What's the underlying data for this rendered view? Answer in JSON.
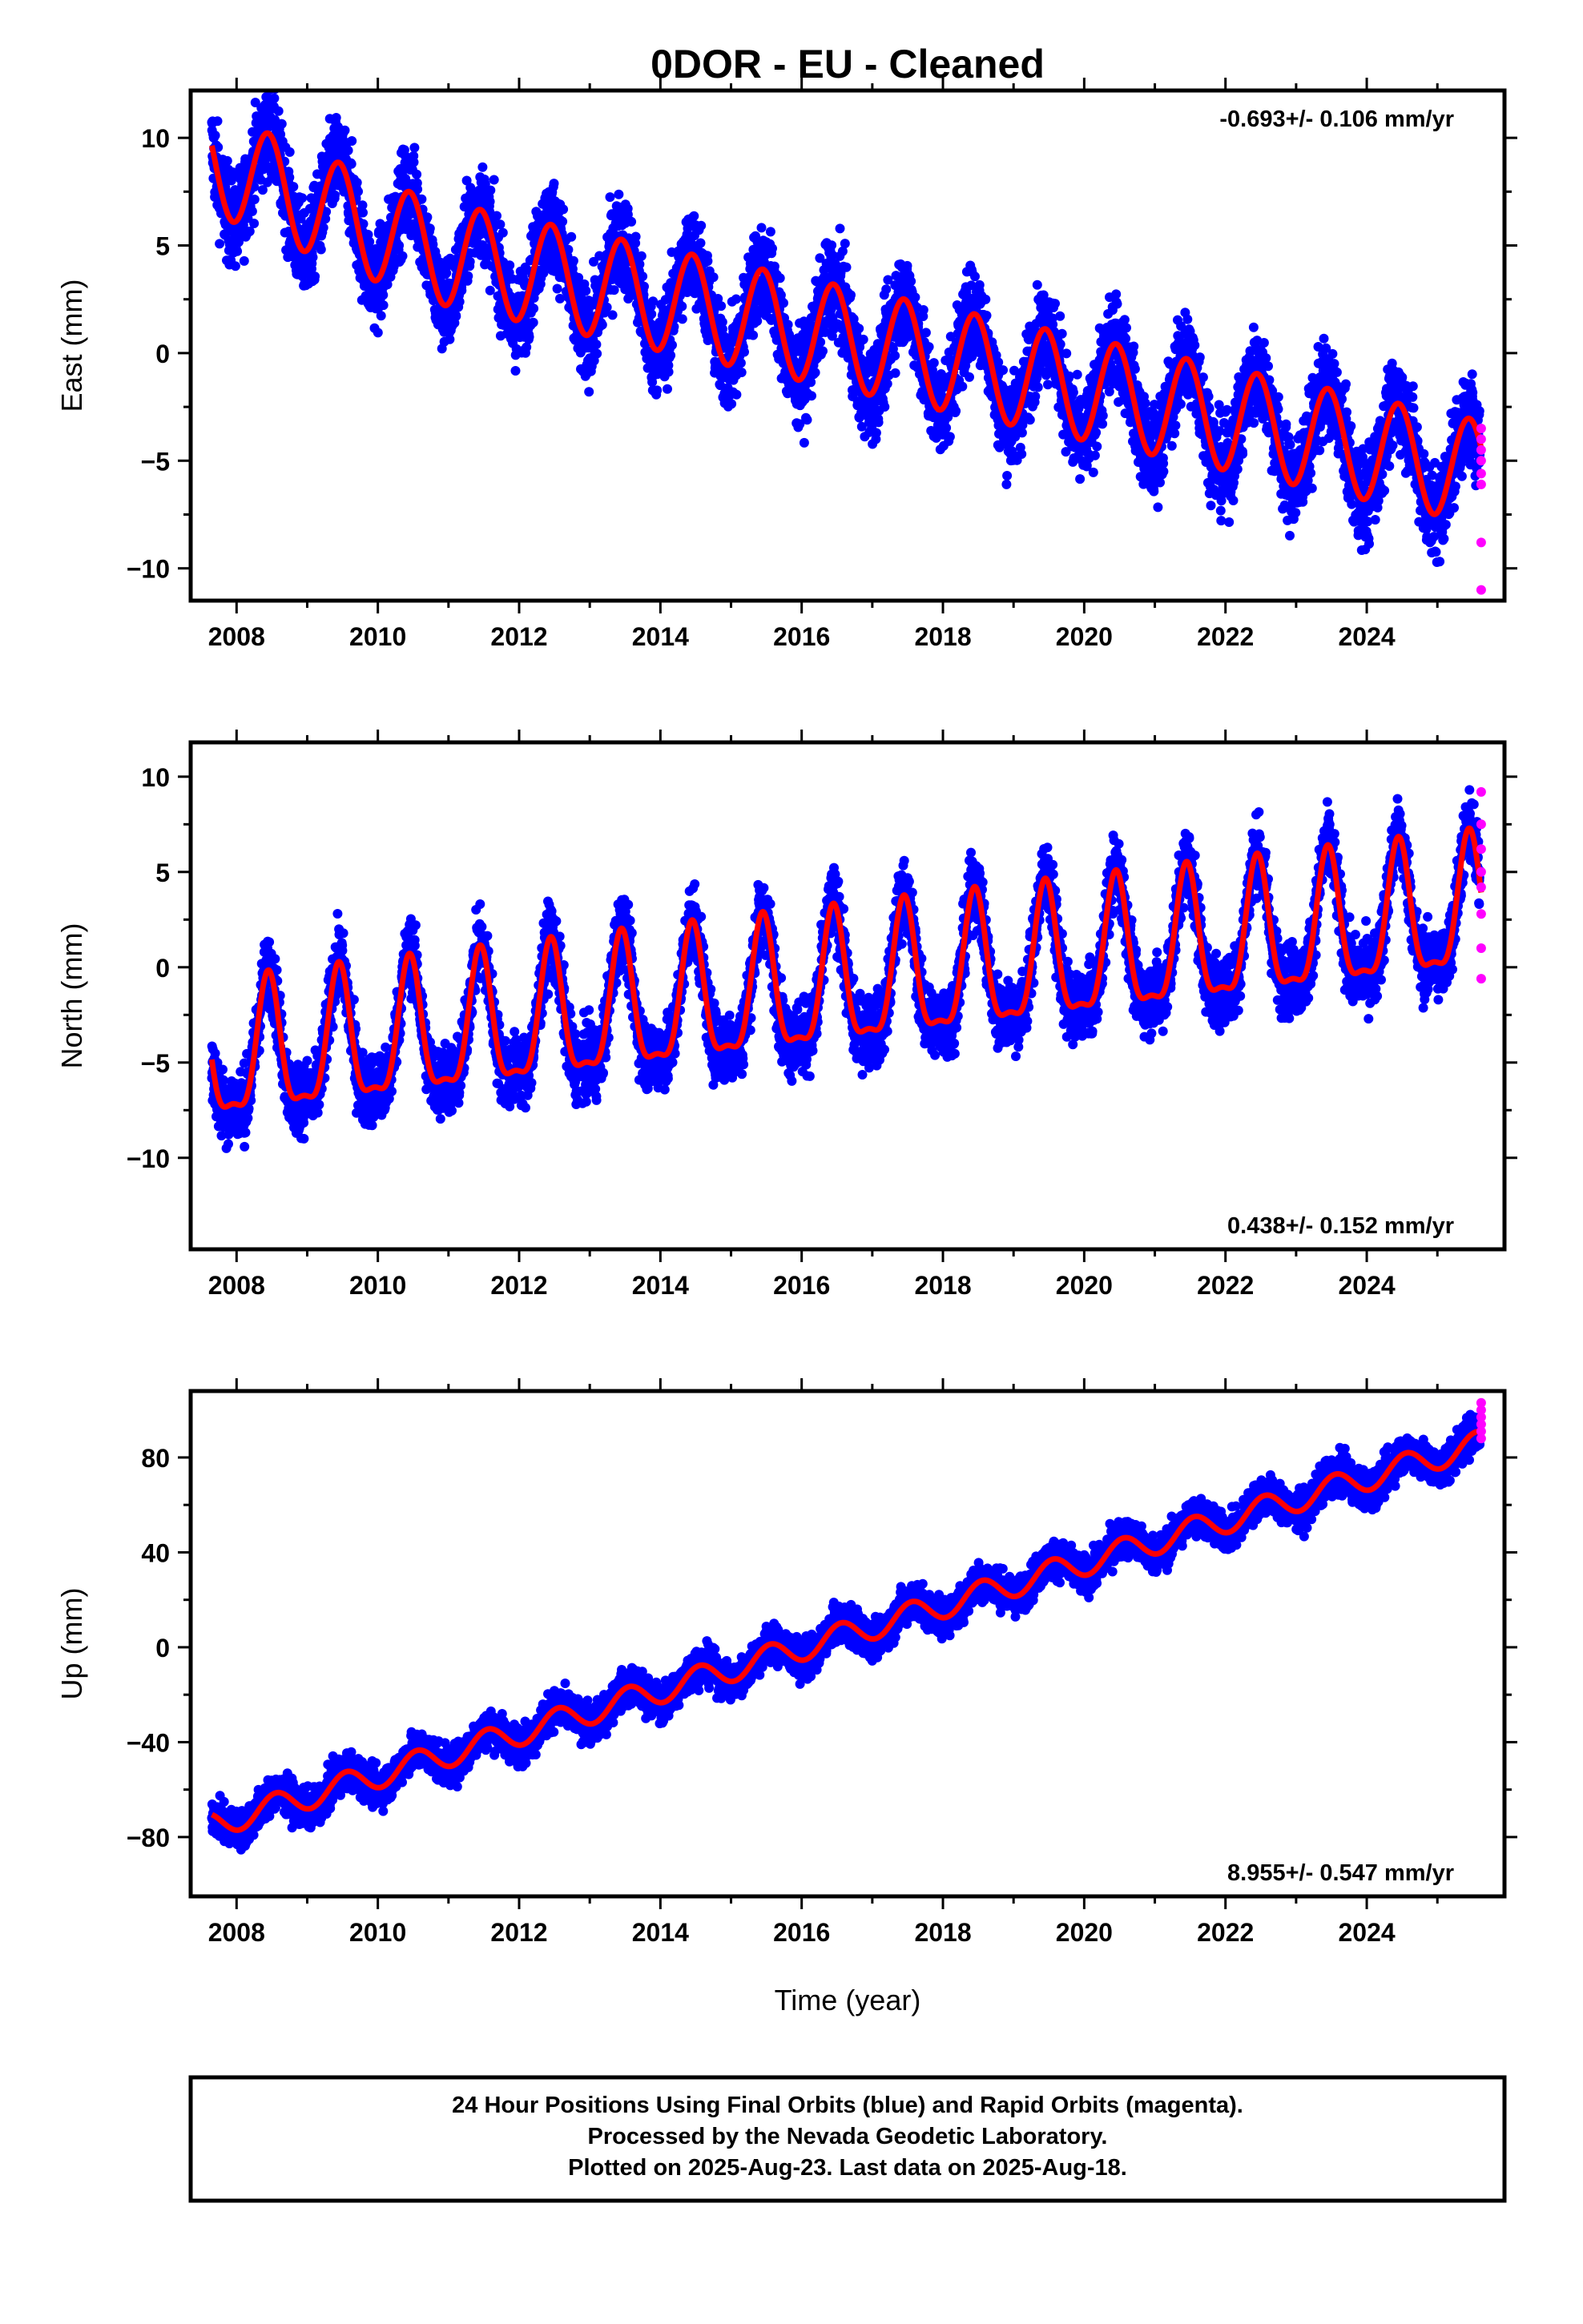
{
  "title": "0DOR  - EU - Cleaned",
  "colors": {
    "final": "#0000ff",
    "rapid": "#ff00ff",
    "model": "#ff0000",
    "frame": "#000000"
  },
  "chart_data": [
    {
      "type": "scatter",
      "ylabel": "East (mm)",
      "xlabel": "",
      "xlim": [
        2007.35,
        2025.95
      ],
      "ylim": [
        -11.5,
        12.2
      ],
      "x_ticks": [
        "2008",
        "2010",
        "2012",
        "2014",
        "2016",
        "2018",
        "2020",
        "2022",
        "2024"
      ],
      "y_ticks": [
        "10",
        "5",
        "0",
        "−5",
        "−10"
      ],
      "y_tick_values": [
        10,
        5,
        0,
        -5,
        -10
      ],
      "rate_label": "-0.693+/- 0.106 mm/yr",
      "rate_position": "top-right",
      "model": {
        "start": 2007.65,
        "end": 2025.62,
        "offset": 6.9,
        "rate": -0.693,
        "annual_amplitude": 2.4,
        "phase_peak": 2008.45,
        "early_bump": 2.0,
        "noise": 1.5
      },
      "series": [
        {
          "name": "Final Orbits (blue)",
          "x_range": [
            2007.65,
            2025.6
          ]
        },
        {
          "name": "Rapid Orbits (magenta)",
          "x": [
            2025.62,
            2025.62,
            2025.62,
            2025.62,
            2025.62,
            2025.62,
            2025.62,
            2025.62
          ],
          "y": [
            -3.5,
            -4.0,
            -4.5,
            -5.0,
            -5.6,
            -6.1,
            -8.8,
            -11.0
          ]
        }
      ]
    },
    {
      "type": "scatter",
      "ylabel": "North (mm)",
      "xlabel": "",
      "xlim": [
        2007.35,
        2025.95
      ],
      "ylim": [
        -14.8,
        11.8
      ],
      "x_ticks": [
        "2008",
        "2010",
        "2012",
        "2014",
        "2016",
        "2018",
        "2020",
        "2022",
        "2024"
      ],
      "y_ticks": [
        "10",
        "5",
        "0",
        "−5",
        "−10"
      ],
      "y_tick_values": [
        10,
        5,
        0,
        -5,
        -10
      ],
      "rate_label": "0.438+/- 0.152 mm/yr",
      "rate_position": "bottom-right",
      "model": {
        "start": 2007.65,
        "end": 2025.62,
        "offset": -5.0,
        "rate": 0.438,
        "annual_amplitude": 3.4,
        "phase_peak": 2008.45,
        "early_bump": 0,
        "noise": 1.3
      },
      "series": [
        {
          "name": "Final Orbits (blue)",
          "x_range": [
            2007.65,
            2025.6
          ]
        },
        {
          "name": "Rapid Orbits (magenta)",
          "x": [
            2025.62,
            2025.62,
            2025.62,
            2025.62,
            2025.62,
            2025.62,
            2025.62,
            2025.62
          ],
          "y": [
            9.2,
            7.5,
            6.2,
            5.0,
            4.2,
            2.8,
            1.0,
            -0.6
          ]
        }
      ]
    },
    {
      "type": "scatter",
      "ylabel": "Up (mm)",
      "xlabel": "Time (year)",
      "xlim": [
        2007.35,
        2025.95
      ],
      "ylim": [
        -105,
        108
      ],
      "x_ticks": [
        "2008",
        "2010",
        "2012",
        "2014",
        "2016",
        "2018",
        "2020",
        "2022",
        "2024"
      ],
      "y_ticks": [
        "80",
        "40",
        "0",
        "−40",
        "−80"
      ],
      "y_tick_values": [
        80,
        40,
        0,
        -40,
        -80
      ],
      "rate_label": "8.955+/- 0.547 mm/yr",
      "rate_position": "bottom-right",
      "model": {
        "start": 2007.65,
        "end": 2025.62,
        "offset": -75,
        "rate": 8.955,
        "annual_amplitude": 5.5,
        "phase_peak": 2008.55,
        "early_bump": 0,
        "noise": 5.5
      },
      "series": [
        {
          "name": "Final Orbits (blue)",
          "x_range": [
            2007.65,
            2025.6
          ]
        },
        {
          "name": "Rapid Orbits (magenta)",
          "x": [
            2025.62,
            2025.62,
            2025.62,
            2025.62,
            2025.62,
            2025.62
          ],
          "y": [
            103,
            100,
            97,
            94,
            91,
            88
          ]
        }
      ]
    }
  ],
  "footer": {
    "line1": "24 Hour Positions Using Final Orbits (blue) and Rapid Orbits (magenta).",
    "line2": "Processed by the Nevada Geodetic Laboratory.",
    "line3": "Plotted on 2025-Aug-23. Last data on 2025-Aug-18."
  }
}
